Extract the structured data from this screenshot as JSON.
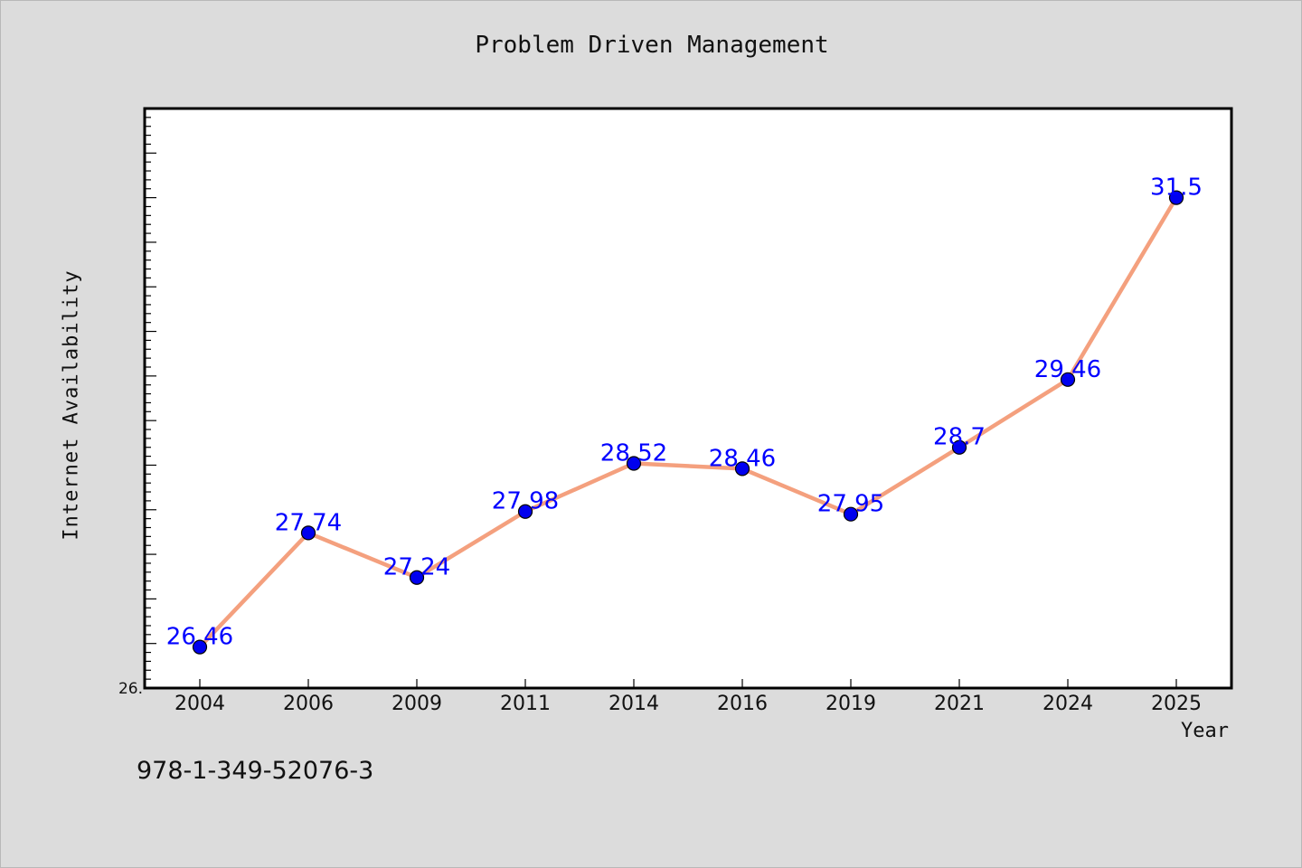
{
  "chart_data": {
    "type": "line",
    "title": "Problem Driven Management",
    "xlabel": "Year",
    "ylabel": "Internet Availability",
    "categories": [
      "2004",
      "2006",
      "2009",
      "2011",
      "2014",
      "2016",
      "2019",
      "2021",
      "2024",
      "2025"
    ],
    "series": [
      {
        "values": [
          26.46,
          27.74,
          27.24,
          27.98,
          28.52,
          28.46,
          27.95,
          28.7,
          29.46,
          31.5
        ],
        "labels": [
          "26.46",
          "27.74",
          "27.24",
          "27.98",
          "28.52",
          "28.46",
          "27.95",
          "28.7",
          "29.46",
          "31.5"
        ]
      }
    ],
    "ylim": [
      26.0,
      32.5
    ],
    "y_tick_labels": [
      {
        "value": 26.0,
        "label": "26."
      }
    ],
    "grid": false,
    "legend": "none",
    "colors": {
      "line": "#f4a07e",
      "marker_fill": "#0000ee",
      "marker_stroke": "#000000",
      "data_label": "#0000ff",
      "plot_background": "#ffffff",
      "page_background": "#dcdcdc"
    }
  },
  "footer": {
    "isbn": "978-1-349-52076-3"
  }
}
